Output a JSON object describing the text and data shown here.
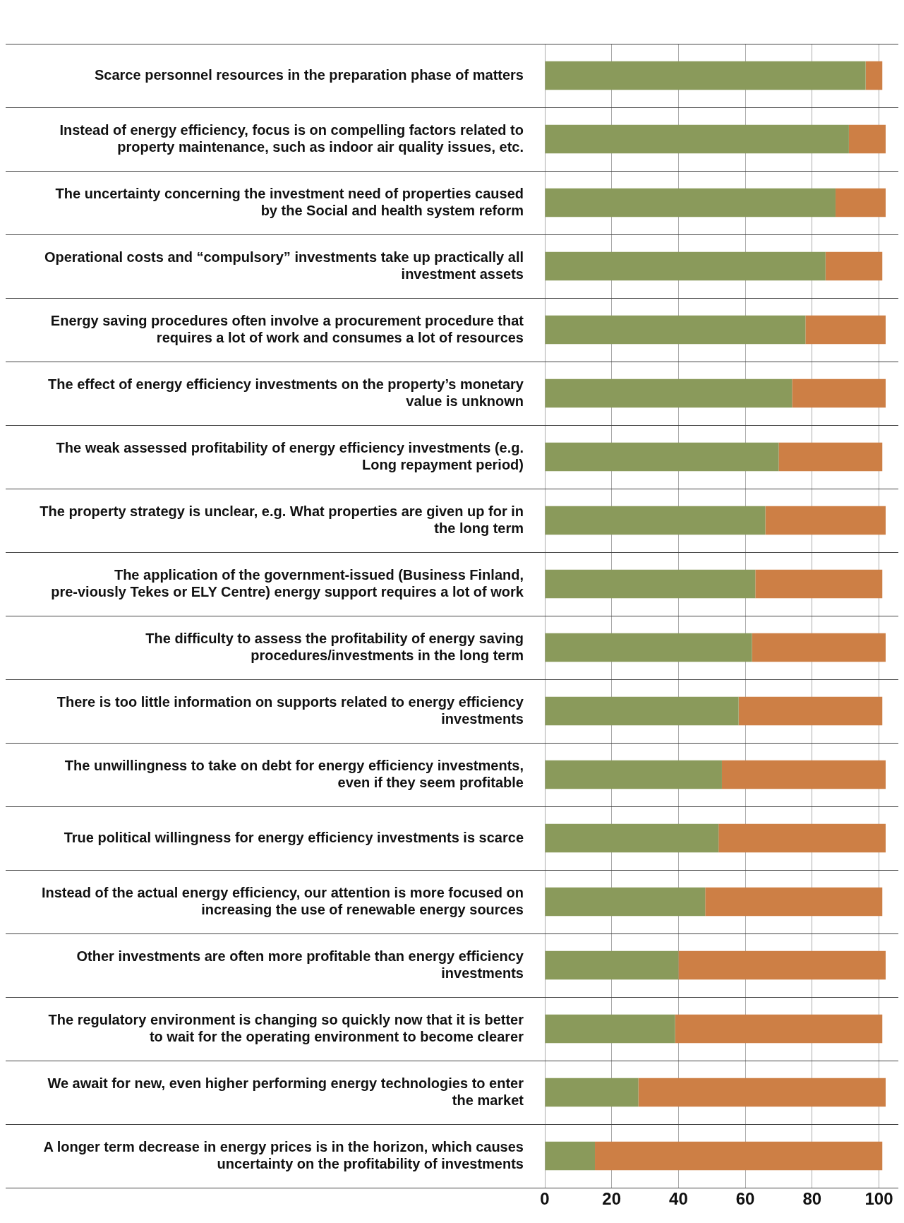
{
  "chart_data": {
    "type": "bar",
    "orientation": "horizontal",
    "stacked": true,
    "categories": [
      "Scarce personnel resources in the preparation phase of matters",
      "Instead of energy efficiency, focus is on compelling factors related to property maintenance, such as indoor air quality issues, etc.",
      "The uncertainty concerning the investment need of properties caused by the Social and health system reform",
      "Operational costs and “compulsory” investments take up practically all investment assets",
      "Energy saving procedures often involve a procurement procedure that requires a lot of work and consumes a lot of resources",
      "The effect of energy efficiency investments on the property’s monetary value is unknown",
      "The weak assessed profitability of energy efficiency investments (e.g. Long repayment period)",
      "The property strategy is unclear, e.g. What properties are given up for in the long term",
      "The application of the government-issued (Business Finland, pre-viously Tekes or ELY Centre) energy support requires a lot of work",
      "The difficulty to assess the profitability of energy saving procedures/investments in the long term",
      "There is too little information on supports related to energy efficiency investments",
      "The unwillingness to take on debt for energy efficiency investments, even if they seem profitable",
      "True political willingness for energy efficiency investments is scarce",
      "Instead of the actual energy efficiency, our attention is more focused on increasing the use of renewable energy sources",
      "Other investments are often more profitable than energy efficiency investments",
      "The regulatory environment is changing so quickly now that it is better to wait for the operating environment to become clearer",
      "We await for new, even higher performing energy technologies to enter the market",
      "A longer term decrease in energy prices is in the horizon, which causes uncertainty on the profitability of investments"
    ],
    "series": [
      {
        "color": "#8a9a5b",
        "values": [
          96,
          91,
          87,
          84,
          78,
          74,
          70,
          66,
          63,
          62,
          58,
          53,
          52,
          48,
          40,
          39,
          28,
          15
        ]
      },
      {
        "color": "#cd7f45",
        "values": [
          5,
          11,
          15,
          17,
          24,
          28,
          31,
          36,
          38,
          40,
          43,
          49,
          50,
          53,
          62,
          62,
          74,
          86
        ]
      }
    ],
    "xlim": [
      0,
      102
    ],
    "xticks": [
      0,
      20,
      40,
      60,
      80,
      100
    ],
    "grid": "x",
    "legend": false
  }
}
